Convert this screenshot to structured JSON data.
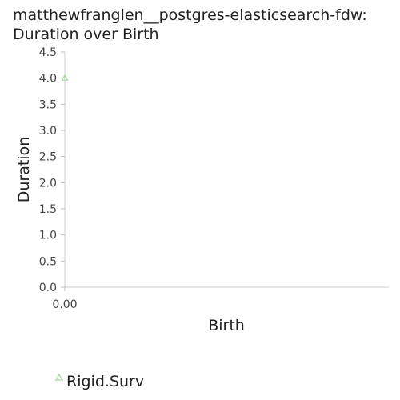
{
  "chart_data": {
    "type": "scatter",
    "title_lines": [
      "matthewfranglen__postgres-elasticsearch-fdw:",
      "Duration over Birth"
    ],
    "xlabel": "Birth",
    "ylabel": "Duration",
    "ylim": [
      0,
      4.5
    ],
    "yticks": [
      0.0,
      0.5,
      1.0,
      1.5,
      2.0,
      2.5,
      3.0,
      3.5,
      4.0,
      4.5
    ],
    "ytick_labels": [
      "0.0",
      "0.5",
      "1.0",
      "1.5",
      "2.0",
      "2.5",
      "3.0",
      "3.5",
      "4.0",
      "4.5"
    ],
    "xticks": [
      0.0
    ],
    "xtick_labels": [
      "0.00"
    ],
    "grid": false,
    "legend_position": "bottom-left",
    "series": [
      {
        "name": "Rigid.Surv",
        "marker": "triangle",
        "color": "#a6d4a0",
        "points": [
          {
            "x": 0.0,
            "y": 4.0
          }
        ]
      }
    ]
  }
}
